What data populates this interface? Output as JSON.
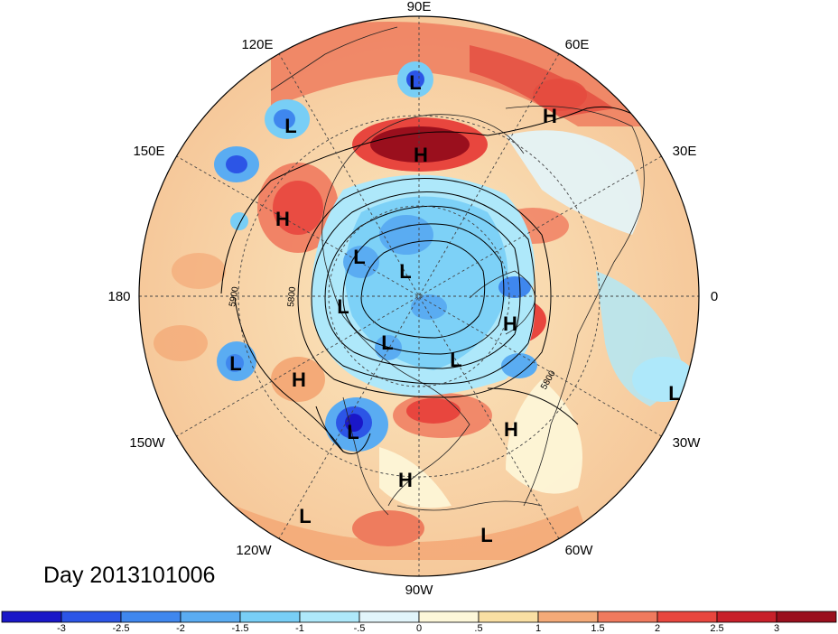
{
  "title": "Day 2013101006",
  "longitude_labels": {
    "lon_90e": "90E",
    "lon_60e": "60E",
    "lon_30e": "30E",
    "lon_0": "0",
    "lon_30w": "30W",
    "lon_60w": "60W",
    "lon_90w": "90W",
    "lon_120w": "120W",
    "lon_150w": "150W",
    "lon_180": "180",
    "lon_150e": "150E",
    "lon_120e": "120E"
  },
  "contour_labels": [
    "5900",
    "5800",
    "5800"
  ],
  "pressure_centers": [
    {
      "type": "H",
      "label": "H"
    },
    {
      "type": "H",
      "label": "H"
    },
    {
      "type": "H",
      "label": "H"
    },
    {
      "type": "H",
      "label": "H"
    },
    {
      "type": "H",
      "label": "H"
    },
    {
      "type": "H",
      "label": "H"
    },
    {
      "type": "H",
      "label": "H"
    },
    {
      "type": "L",
      "label": "L"
    },
    {
      "type": "L",
      "label": "L"
    },
    {
      "type": "L",
      "label": "L"
    },
    {
      "type": "L",
      "label": "L"
    },
    {
      "type": "L",
      "label": "L"
    },
    {
      "type": "L",
      "label": "L"
    },
    {
      "type": "L",
      "label": "L"
    },
    {
      "type": "L",
      "label": "L"
    },
    {
      "type": "L",
      "label": "L"
    },
    {
      "type": "L",
      "label": "L"
    },
    {
      "type": "L",
      "label": "L"
    },
    {
      "type": "L",
      "label": "L"
    },
    {
      "type": "L",
      "label": "L"
    }
  ],
  "colorbar": {
    "ticks": [
      "-3",
      "-2.5",
      "-2",
      "-1.5",
      "-1",
      "-.5",
      "0",
      ".5",
      "1",
      "1.5",
      "2",
      "2.5",
      "3"
    ],
    "colors": [
      "#1a17c8",
      "#2c55e6",
      "#3f87ee",
      "#5aacf2",
      "#78cef6",
      "#aee8fa",
      "#e2f5fb",
      "#fdf7d9",
      "#f9dfa3",
      "#f4aa78",
      "#f07a5e",
      "#e8463e",
      "#c8202a",
      "#9a0f1d"
    ]
  }
}
